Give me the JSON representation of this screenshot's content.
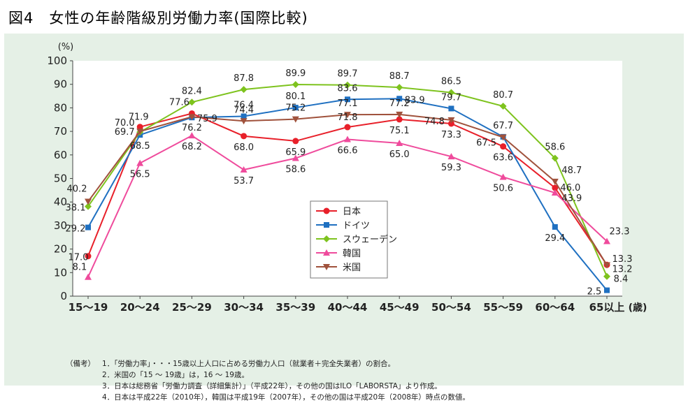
{
  "title": "図4　女性の年齢階級別労働力率(国際比較)",
  "chart_data": {
    "type": "line",
    "title": "図4　女性の年齢階級別労働力率(国際比較)",
    "ylabel": "(%)",
    "xlabel": "(歳)",
    "ylim": [
      0,
      100
    ],
    "yticks": [
      0,
      10,
      20,
      30,
      40,
      50,
      60,
      70,
      80,
      90,
      100
    ],
    "grid": false,
    "legend_position": "center",
    "categories": [
      "15〜19",
      "20〜24",
      "25〜29",
      "30〜34",
      "35〜39",
      "40〜44",
      "45〜49",
      "50〜54",
      "55〜59",
      "60〜64",
      "65以上"
    ],
    "series": [
      {
        "name": "日本",
        "color": "#e8202a",
        "marker": "circle",
        "values": [
          17.0,
          71.9,
          77.6,
          68.0,
          65.9,
          71.8,
          75.1,
          73.3,
          63.6,
          46.0,
          13.3
        ]
      },
      {
        "name": "ドイツ",
        "color": "#1f70c1",
        "marker": "square",
        "values": [
          29.2,
          68.5,
          75.9,
          76.4,
          80.1,
          83.6,
          83.9,
          79.7,
          67.7,
          29.4,
          2.5
        ]
      },
      {
        "name": "スウェーデン",
        "color": "#7ec31e",
        "marker": "diamond",
        "values": [
          38.1,
          69.7,
          82.4,
          87.8,
          89.9,
          89.7,
          88.7,
          86.5,
          80.7,
          58.6,
          8.4
        ]
      },
      {
        "name": "韓国",
        "color": "#ef4b9c",
        "marker": "triangle-up",
        "values": [
          8.1,
          56.5,
          68.2,
          53.7,
          58.6,
          66.6,
          65.0,
          59.3,
          50.6,
          43.9,
          23.3
        ]
      },
      {
        "name": "米国",
        "color": "#a0523c",
        "marker": "triangle-down",
        "values": [
          40.2,
          70.0,
          76.2,
          74.4,
          75.2,
          77.1,
          77.2,
          74.8,
          67.5,
          48.7,
          13.2
        ]
      }
    ]
  },
  "notes": {
    "label": "（備考）",
    "items": [
      "1．「労働力率」・・・15歳以上人口に占める労働力人口（就業者＋完全失業者）の割合。",
      "2．米国の「15 〜 19歳」は，16 〜 19歳。",
      "3．日本は総務省「労働力調査（詳細集計）」（平成22年），その他の国はILO「LABORSTA」より作成。",
      "4．日本は平成22年（2010年），韓国は平成19年（2007年），その他の国は平成20年（2008年）時点の数値。"
    ]
  }
}
